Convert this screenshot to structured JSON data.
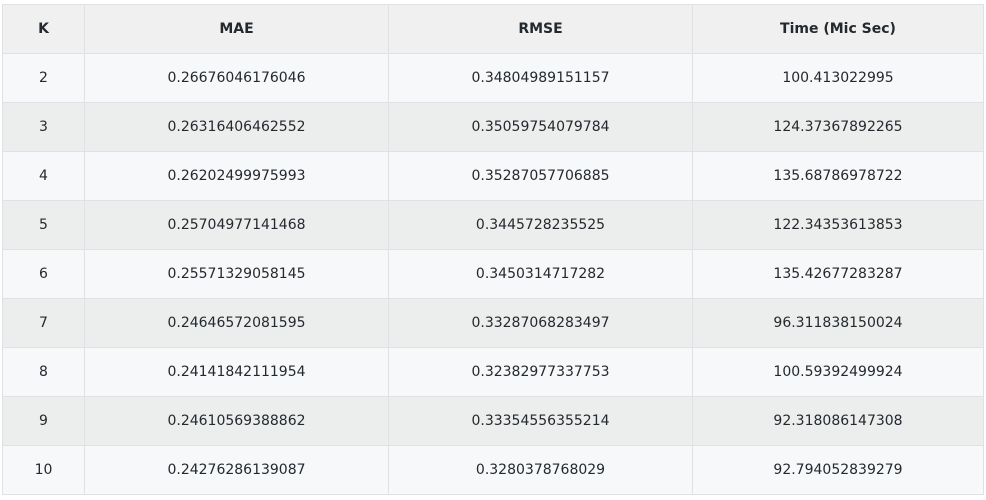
{
  "table": {
    "headers": [
      "K",
      "MAE",
      "RMSE",
      "Time (Mic Sec)"
    ],
    "rows": [
      [
        "2",
        "0.26676046176046",
        "0.34804989151157",
        "100.413022995"
      ],
      [
        "3",
        "0.26316406462552",
        "0.35059754079784",
        "124.37367892265"
      ],
      [
        "4",
        "0.26202499975993",
        "0.35287057706885",
        "135.68786978722"
      ],
      [
        "5",
        "0.25704977141468",
        "0.3445728235525",
        "122.34353613853"
      ],
      [
        "6",
        "0.25571329058145",
        "0.3450314717282",
        "135.42677283287"
      ],
      [
        "7",
        "0.24646572081595",
        "0.33287068283497",
        "96.311838150024"
      ],
      [
        "8",
        "0.24141842111954",
        "0.32382977337753",
        "100.59392499924"
      ],
      [
        "9",
        "0.24610569388862",
        "0.33354556355214",
        "92.318086147308"
      ],
      [
        "10",
        "0.24276286139087",
        "0.3280378768029",
        "92.794052839279"
      ]
    ]
  }
}
